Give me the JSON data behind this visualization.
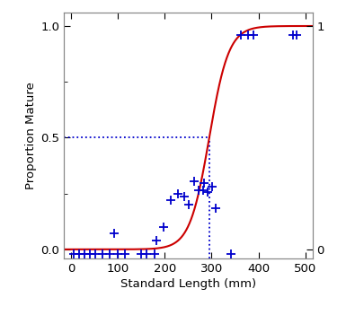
{
  "title": "",
  "xlabel": "Standard Length (mm)",
  "ylabel": "Proportion Mature",
  "xlim": [
    -15,
    515
  ],
  "ylim": [
    -0.04,
    1.06
  ],
  "xticks": [
    0,
    100,
    200,
    300,
    400,
    500
  ],
  "yticks_left": [
    0.0,
    0.5,
    1.0
  ],
  "yticks_right": [
    0,
    1
  ],
  "L50": 295,
  "logistic_k": 0.048,
  "curve_color": "#cc0000",
  "dashed_color": "#0000cc",
  "point_color": "#0000cc",
  "data_points": [
    [
      5,
      -0.02
    ],
    [
      18,
      -0.02
    ],
    [
      28,
      -0.02
    ],
    [
      40,
      -0.02
    ],
    [
      52,
      -0.02
    ],
    [
      68,
      -0.02
    ],
    [
      82,
      -0.02
    ],
    [
      100,
      -0.02
    ],
    [
      115,
      -0.02
    ],
    [
      92,
      0.07
    ],
    [
      150,
      -0.02
    ],
    [
      162,
      -0.02
    ],
    [
      178,
      -0.02
    ],
    [
      182,
      0.04
    ],
    [
      198,
      0.1
    ],
    [
      212,
      0.22
    ],
    [
      228,
      0.25
    ],
    [
      242,
      0.235
    ],
    [
      252,
      0.2
    ],
    [
      262,
      0.305
    ],
    [
      272,
      0.265
    ],
    [
      282,
      0.265
    ],
    [
      283,
      0.295
    ],
    [
      292,
      0.255
    ],
    [
      302,
      0.28
    ],
    [
      308,
      0.185
    ],
    [
      342,
      -0.02
    ],
    [
      362,
      0.96
    ],
    [
      378,
      0.96
    ],
    [
      390,
      0.96
    ],
    [
      473,
      0.96
    ],
    [
      482,
      0.96
    ]
  ]
}
